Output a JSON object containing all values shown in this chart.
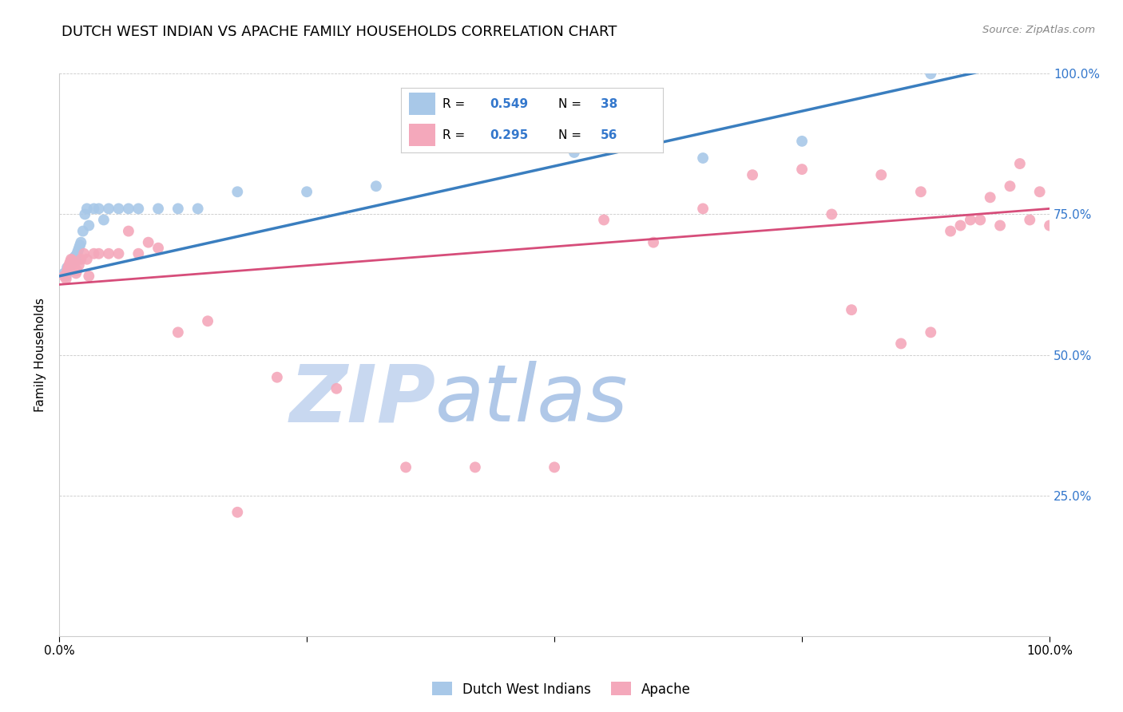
{
  "title": "DUTCH WEST INDIAN VS APACHE FAMILY HOUSEHOLDS CORRELATION CHART",
  "source": "Source: ZipAtlas.com",
  "ylabel": "Family Households",
  "blue_color": "#a8c8e8",
  "pink_color": "#f4a8bb",
  "blue_line_color": "#3a7ebf",
  "pink_line_color": "#d64d7a",
  "watermark_zip": "ZIP",
  "watermark_atlas": "atlas",
  "watermark_color_zip": "#c8d8ee",
  "watermark_color_atlas": "#c8d8ee",
  "title_fontsize": 13,
  "source_fontsize": 10,
  "blue_x": [
    0.005,
    0.007,
    0.008,
    0.009,
    0.01,
    0.011,
    0.012,
    0.013,
    0.014,
    0.015,
    0.016,
    0.017,
    0.018,
    0.019,
    0.02,
    0.021,
    0.022,
    0.024,
    0.026,
    0.028,
    0.03,
    0.035,
    0.04,
    0.045,
    0.05,
    0.06,
    0.07,
    0.08,
    0.1,
    0.12,
    0.14,
    0.18,
    0.25,
    0.32,
    0.52,
    0.65,
    0.75,
    0.88
  ],
  "blue_y": [
    0.645,
    0.64,
    0.655,
    0.648,
    0.652,
    0.658,
    0.66,
    0.665,
    0.67,
    0.672,
    0.675,
    0.668,
    0.68,
    0.685,
    0.69,
    0.695,
    0.7,
    0.72,
    0.75,
    0.76,
    0.73,
    0.76,
    0.76,
    0.74,
    0.76,
    0.76,
    0.76,
    0.76,
    0.76,
    0.76,
    0.76,
    0.79,
    0.79,
    0.8,
    0.86,
    0.85,
    0.88,
    1.0
  ],
  "pink_x": [
    0.005,
    0.007,
    0.008,
    0.009,
    0.01,
    0.011,
    0.012,
    0.013,
    0.014,
    0.015,
    0.016,
    0.017,
    0.018,
    0.02,
    0.022,
    0.025,
    0.028,
    0.03,
    0.035,
    0.04,
    0.05,
    0.06,
    0.07,
    0.08,
    0.09,
    0.1,
    0.12,
    0.15,
    0.18,
    0.22,
    0.28,
    0.35,
    0.42,
    0.5,
    0.55,
    0.6,
    0.65,
    0.7,
    0.75,
    0.78,
    0.8,
    0.83,
    0.85,
    0.87,
    0.88,
    0.9,
    0.91,
    0.92,
    0.93,
    0.94,
    0.95,
    0.96,
    0.97,
    0.98,
    0.99,
    1.0
  ],
  "pink_y": [
    0.64,
    0.635,
    0.648,
    0.655,
    0.66,
    0.665,
    0.67,
    0.668,
    0.66,
    0.65,
    0.655,
    0.645,
    0.65,
    0.66,
    0.67,
    0.68,
    0.67,
    0.64,
    0.68,
    0.68,
    0.68,
    0.68,
    0.72,
    0.68,
    0.7,
    0.69,
    0.54,
    0.56,
    0.22,
    0.46,
    0.44,
    0.3,
    0.3,
    0.3,
    0.74,
    0.7,
    0.76,
    0.82,
    0.83,
    0.75,
    0.58,
    0.82,
    0.52,
    0.79,
    0.54,
    0.72,
    0.73,
    0.74,
    0.74,
    0.78,
    0.73,
    0.8,
    0.84,
    0.74,
    0.79,
    0.73
  ]
}
